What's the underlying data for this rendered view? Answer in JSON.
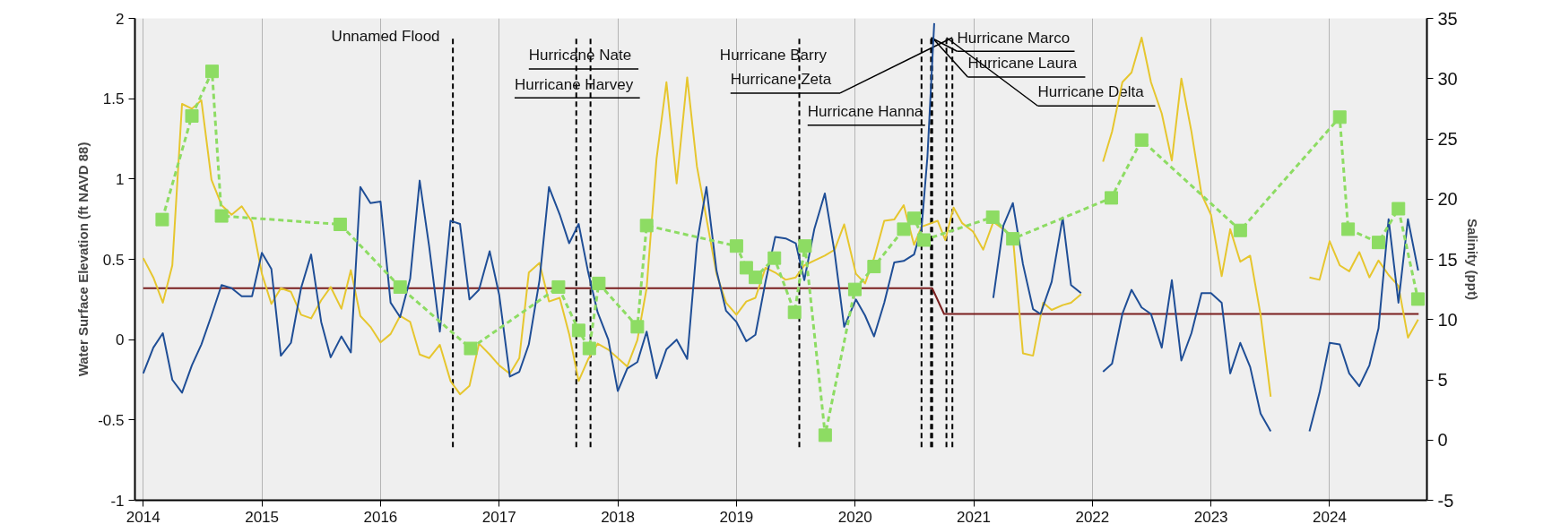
{
  "chart_data": {
    "type": "line",
    "ylabel": "Water Surface Elevation (ft NAVD 88)",
    "y2label": "Salinity (ppt)",
    "xlim": [
      2013.93,
      2024.82
    ],
    "xticks": [
      2014,
      2015,
      2016,
      2017,
      2018,
      2019,
      2020,
      2021,
      2022,
      2023,
      2024
    ],
    "ylim": [
      -1,
      2
    ],
    "yticks": [
      -1,
      -0.5,
      0,
      0.5,
      1,
      1.5,
      2
    ],
    "y2lim": [
      -5,
      35
    ],
    "y2ticks": [
      -5,
      0,
      5,
      10,
      15,
      20,
      25,
      30,
      35
    ],
    "grid": "x",
    "series": [
      {
        "type": "line",
        "color": "#7a1f1f",
        "x": [
          2014.0,
          2020.65,
          2020.75,
          2024.75
        ],
        "values": [
          0.32,
          0.32,
          0.16,
          0.16
        ]
      },
      {
        "type": "line",
        "color": "#e6c62e",
        "axis": "y2",
        "x": [
          2014.0,
          2014.085,
          2014.165,
          2014.245,
          2014.327,
          2014.41,
          2014.49,
          2014.575,
          2014.66,
          2014.745,
          2014.83,
          2014.917,
          2015.0,
          2015.08,
          2015.16,
          2015.245,
          2015.33,
          2015.415,
          2015.5,
          2015.58,
          2015.67,
          2015.75,
          2015.83,
          2015.915,
          2016.0,
          2016.085,
          2016.165,
          2016.25,
          2016.33,
          2016.41,
          2016.5,
          2016.59,
          2016.67,
          2016.75,
          2016.83,
          2016.92,
          2017.0,
          2017.09,
          2017.17,
          2017.25,
          2017.34,
          2017.42,
          2017.51,
          2017.59,
          2017.67,
          2017.75,
          2017.83,
          2017.92,
          2018.0,
          2018.08,
          2018.165,
          2018.243,
          2018.326,
          2018.41,
          2018.496,
          2018.585,
          2018.667,
          2018.747,
          2018.832,
          2018.912,
          2019.0,
          2019.083,
          2019.16,
          2019.245,
          2019.327,
          2019.415,
          2019.5,
          2019.572,
          2019.657,
          2019.745,
          2019.828,
          2019.908,
          2020.007,
          2020.084,
          2020.16,
          2020.246,
          2020.33,
          2020.41,
          2020.497,
          2020.56,
          2020.696,
          2020.76,
          2020.83,
          2020.903,
          2020.994,
          2021.08,
          2021.165,
          2021.25,
          2021.33,
          2021.415,
          2021.5,
          2021.586,
          2021.657,
          2021.75,
          2021.82,
          2021.905,
          2022.0,
          2022.09,
          2022.166,
          2022.253,
          2022.33,
          2022.415,
          2022.494,
          2022.585,
          2022.67,
          2022.75,
          2022.835,
          2022.92,
          2023.0,
          2023.09,
          2023.162,
          2023.247,
          2023.33,
          2023.418,
          2023.503,
          2023.7,
          2023.83,
          2023.915,
          2024.0,
          2024.085,
          2024.165,
          2024.25,
          2024.335,
          2024.412,
          2024.497,
          2024.58,
          2024.66,
          2024.746
        ],
        "values": [
          15.1,
          13.5,
          11.4,
          14.5,
          27.9,
          27.5,
          28.2,
          21.6,
          19.5,
          18.7,
          19.4,
          18.1,
          13.8,
          11.3,
          12.6,
          12.3,
          10.4,
          10.1,
          11.6,
          12.7,
          10.9,
          14.1,
          10.3,
          9.4,
          8.1,
          8.8,
          10.3,
          9.8,
          7.1,
          6.8,
          7.9,
          4.9,
          3.8,
          4.5,
          8.0,
          7.1,
          6.2,
          5.5,
          6.8,
          13.9,
          14.7,
          11.5,
          11.8,
          8.8,
          4.9,
          6.7,
          8.0,
          7.5,
          6.8,
          6.1,
          8.3,
          12.6,
          23.3,
          29.7,
          21.3,
          30.1,
          22.7,
          18.4,
          13.8,
          11.4,
          10.4,
          11.5,
          11.8,
          14.3,
          13.9,
          13.3,
          13.5,
          14.5,
          14.9,
          15.3,
          15.8,
          17.9,
          13.8,
          13.0,
          15.1,
          18.2,
          18.3,
          19.5,
          16.2,
          17.7,
          18.2,
          16.6,
          19.3,
          18.0,
          17.3,
          15.8,
          18.1,
          17.5,
          16.9,
          7.2,
          7.0,
          11.4,
          10.8,
          11.2,
          11.4,
          12.1,
          null,
          23.1,
          25.6,
          29.7,
          30.5,
          33.4,
          29.7,
          27.1,
          23.2,
          30.0,
          25.6,
          20.4,
          18.7,
          13.6,
          17.5,
          14.8,
          15.3,
          10.4,
          3.6,
          null,
          13.5,
          13.3,
          16.5,
          14.5,
          14.0,
          15.6,
          13.5,
          14.9,
          13.7,
          12.8,
          8.5,
          10.0
        ]
      },
      {
        "type": "line",
        "color": "#1f4e96",
        "x": [
          2014.0,
          2014.085,
          2014.165,
          2014.245,
          2014.327,
          2014.41,
          2014.49,
          2014.575,
          2014.66,
          2014.745,
          2014.83,
          2014.917,
          2015.0,
          2015.08,
          2015.16,
          2015.245,
          2015.33,
          2015.415,
          2015.5,
          2015.58,
          2015.67,
          2015.75,
          2015.83,
          2015.915,
          2016.0,
          2016.085,
          2016.165,
          2016.25,
          2016.33,
          2016.41,
          2016.5,
          2016.59,
          2016.67,
          2016.75,
          2016.83,
          2016.92,
          2017.0,
          2017.09,
          2017.17,
          2017.25,
          2017.34,
          2017.42,
          2017.51,
          2017.59,
          2017.67,
          2017.75,
          2017.83,
          2017.92,
          2018.0,
          2018.08,
          2018.165,
          2018.243,
          2018.326,
          2018.41,
          2018.496,
          2018.585,
          2018.667,
          2018.747,
          2018.832,
          2018.912,
          2019.0,
          2019.083,
          2019.16,
          2019.245,
          2019.327,
          2019.415,
          2019.5,
          2019.572,
          2019.657,
          2019.745,
          2019.828,
          2019.908,
          2020.007,
          2020.084,
          2020.16,
          2020.246,
          2020.33,
          2020.41,
          2020.497,
          2020.56,
          2020.61,
          2020.667,
          2020.9,
          2021.165,
          2021.25,
          2021.33,
          2021.415,
          2021.5,
          2021.563,
          2021.657,
          2021.75,
          2021.82,
          2021.905,
          2022.0,
          2022.09,
          2022.166,
          2022.253,
          2022.33,
          2022.415,
          2022.494,
          2022.585,
          2022.67,
          2022.75,
          2022.835,
          2022.92,
          2023.0,
          2023.09,
          2023.162,
          2023.247,
          2023.33,
          2023.418,
          2023.503,
          2023.7,
          2023.83,
          2023.915,
          2024.0,
          2024.085,
          2024.165,
          2024.25,
          2024.335,
          2024.412,
          2024.497,
          2024.58,
          2024.66,
          2024.746
        ],
        "values": [
          -0.21,
          -0.05,
          0.04,
          -0.25,
          -0.33,
          -0.16,
          -0.03,
          0.15,
          0.34,
          0.32,
          0.27,
          0.27,
          0.54,
          0.44,
          -0.1,
          -0.02,
          0.32,
          0.53,
          0.11,
          -0.11,
          0.02,
          -0.08,
          0.95,
          0.85,
          0.86,
          0.23,
          0.14,
          0.38,
          0.99,
          0.58,
          0.05,
          0.74,
          0.72,
          0.25,
          0.31,
          0.55,
          0.28,
          -0.23,
          -0.2,
          -0.03,
          0.37,
          0.95,
          0.78,
          0.6,
          0.72,
          0.42,
          0.17,
          0.0,
          -0.32,
          -0.18,
          -0.14,
          0.05,
          -0.24,
          -0.06,
          0.0,
          -0.12,
          0.6,
          0.95,
          0.43,
          0.18,
          0.11,
          -0.01,
          0.03,
          0.36,
          0.64,
          0.63,
          0.6,
          0.37,
          0.69,
          0.91,
          0.54,
          0.08,
          0.25,
          0.15,
          0.02,
          0.23,
          0.48,
          0.49,
          0.53,
          0.69,
          1.14,
          1.97,
          null,
          0.26,
          0.71,
          0.85,
          0.47,
          0.19,
          0.16,
          0.36,
          0.76,
          0.34,
          0.29,
          null,
          -0.2,
          -0.15,
          0.16,
          0.31,
          0.2,
          0.16,
          -0.05,
          0.37,
          -0.13,
          0.04,
          0.29,
          0.29,
          0.23,
          -0.21,
          -0.02,
          -0.17,
          -0.46,
          -0.57,
          null,
          -0.57,
          -0.33,
          -0.02,
          -0.03,
          -0.21,
          -0.29,
          -0.16,
          0.07,
          0.75,
          0.23,
          0.75,
          0.43
        ]
      },
      {
        "type": "line",
        "color": "#8ddc63",
        "axis": "y2",
        "marker": "square",
        "line_style": "dashed",
        "x": [
          2014.16,
          2014.41,
          2014.58,
          2014.66,
          2015.66,
          2016.165,
          2016.76,
          2017.5,
          2017.67,
          2017.76,
          2017.84,
          2018.165,
          2018.243,
          2019.0,
          2019.083,
          2019.16,
          2019.32,
          2019.49,
          2019.578,
          2019.748,
          2019.998,
          2020.16,
          2020.41,
          2020.497,
          2020.58,
          2021.16,
          2021.33,
          2022.16,
          2022.415,
          2023.247,
          2024.085,
          2024.156,
          2024.412,
          2024.58,
          2024.744
        ],
        "values": [
          18.3,
          26.9,
          30.6,
          18.6,
          17.9,
          12.7,
          7.6,
          12.7,
          9.1,
          7.6,
          13.0,
          9.4,
          17.8,
          16.1,
          14.3,
          13.5,
          15.1,
          10.6,
          16.1,
          0.4,
          12.5,
          14.4,
          17.5,
          18.4,
          16.6,
          18.5,
          16.7,
          20.1,
          24.9,
          17.4,
          26.8,
          17.5,
          16.4,
          19.2,
          11.7
        ]
      }
    ],
    "ref_lines": [
      {
        "axis": "x",
        "value": 2016.61,
        "label": "Unnamed Flood",
        "color": "#000000",
        "line_style": "dashed"
      },
      {
        "axis": "x",
        "value": 2017.65,
        "label": "Hurricane Harvey",
        "color": "#000000",
        "line_style": "dashed"
      },
      {
        "axis": "x",
        "value": 2017.77,
        "label": "Hurricane Nate",
        "color": "#000000",
        "line_style": "dashed"
      },
      {
        "axis": "x",
        "value": 2019.53,
        "label": "Hurricane Barry",
        "color": "#000000",
        "line_style": "dashed"
      },
      {
        "axis": "x",
        "value": 2020.56,
        "label": "Hurricane Hanna",
        "color": "#000000",
        "line_style": "dashed"
      },
      {
        "axis": "x",
        "value": 2020.64,
        "label": "Hurricane Marco",
        "color": "#000000",
        "line_style": "dashed"
      },
      {
        "axis": "x",
        "value": 2020.65,
        "label": "Hurricane Laura",
        "color": "#000000",
        "line_style": "dashed"
      },
      {
        "axis": "x",
        "value": 2020.77,
        "label": "Hurricane Delta",
        "color": "#000000",
        "line_style": "dashed"
      },
      {
        "axis": "x",
        "value": 2020.82,
        "label": "Hurricane Zeta",
        "color": "#000000",
        "line_style": "dashed"
      }
    ]
  }
}
